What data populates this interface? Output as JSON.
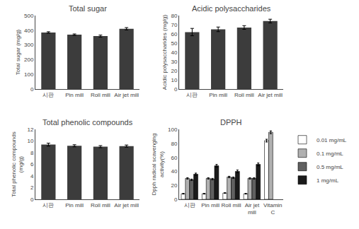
{
  "chart_data": [
    {
      "type": "bar",
      "title": "Total sugar",
      "categories": [
        "시판",
        "Pin mill",
        "Roll mill",
        "Air jet mill"
      ],
      "ylabel": "Total sugar (mg/g)",
      "values": [
        385,
        370,
        360,
        410
      ],
      "errors": [
        5,
        5,
        7,
        8
      ],
      "color": "#3c3c3c",
      "ylim": [
        0,
        500
      ],
      "yticks": [
        0,
        100,
        200,
        300,
        400,
        500
      ],
      "grid": false
    },
    {
      "type": "bar",
      "title": "Acidic polysaccharides",
      "categories": [
        "시판",
        "Pin mill",
        "Roll mill",
        "Air jet mill"
      ],
      "ylabel": "Acidic polysaccharides (mg/g)",
      "values": [
        62,
        65,
        67,
        74
      ],
      "errors": [
        4,
        2.5,
        2,
        2
      ],
      "color": "#3c3c3c",
      "ylim": [
        0,
        80
      ],
      "yticks": [
        0,
        10,
        20,
        30,
        40,
        50,
        60,
        70,
        80
      ],
      "grid": false
    },
    {
      "type": "bar",
      "title": "Total phenolic compounds",
      "categories": [
        "시판",
        "Pin mill",
        "Roll mill",
        "Air jet mill"
      ],
      "ylabel": "Total phenolic compounds\n(mg/g)",
      "values": [
        9.4,
        9.2,
        9.05,
        9.15
      ],
      "errors": [
        0.25,
        0.18,
        0.18,
        0.18
      ],
      "color": "#3c3c3c",
      "ylim": [
        0,
        12
      ],
      "yticks": [
        0,
        2,
        4,
        6,
        8,
        10,
        12
      ],
      "grid": false
    },
    {
      "type": "bar",
      "title": "DPPH",
      "categories": [
        "시판",
        "Pin mill",
        "Roll mill",
        "Air jet\nmill",
        "Vitamin\nC"
      ],
      "ylabel": "Dpph radical scavenging\nactivity(%)",
      "series": [
        {
          "name": "0.01 mg/mL",
          "color": "#ffffff",
          "values": [
            8,
            8,
            9,
            8,
            84
          ],
          "errors": [
            0.5,
            0.5,
            0.5,
            0.5,
            2
          ]
        },
        {
          "name": "0.1 mg/mL",
          "color": "#b0b0b0",
          "values": [
            30,
            30,
            32,
            30,
            96
          ],
          "errors": [
            1,
            1,
            1,
            1,
            2
          ]
        },
        {
          "name": "0.5 mg/mL",
          "color": "#606060",
          "values": [
            28,
            29,
            31,
            30,
            null
          ],
          "errors": [
            1,
            1,
            1,
            1,
            null
          ]
        },
        {
          "name": "1 mg/mL",
          "color": "#1a1a1a",
          "values": [
            36,
            48,
            40,
            50,
            null
          ],
          "errors": [
            1.5,
            2,
            2,
            2,
            null
          ]
        }
      ],
      "ylim": [
        0,
        100
      ],
      "yticks": [
        0,
        20,
        40,
        60,
        80,
        100
      ],
      "grid": false,
      "legend": "right"
    }
  ]
}
